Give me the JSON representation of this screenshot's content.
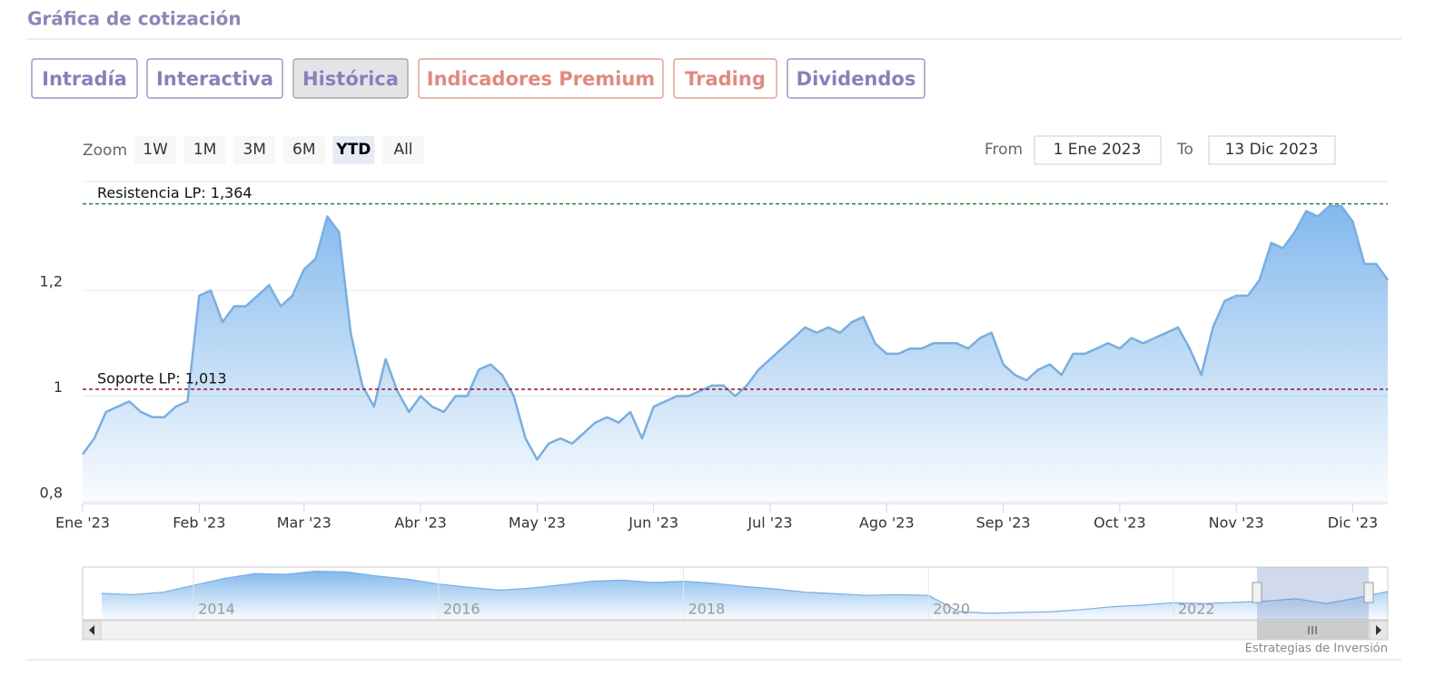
{
  "header": {
    "title": "Gráfica de cotización"
  },
  "tabs": [
    {
      "label": "Intradía",
      "color": "#8a80b8"
    },
    {
      "label": "Interactiva",
      "color": "#8a80b8"
    },
    {
      "label": "Histórica",
      "color": "#8a80b8",
      "selected": true
    },
    {
      "label": "Indicadores Premium",
      "color": "#e08a80"
    },
    {
      "label": "Trading",
      "color": "#e08a80"
    },
    {
      "label": "Dividendos",
      "color": "#8a80b8"
    }
  ],
  "zoom": {
    "label": "Zoom",
    "buttons": [
      "1W",
      "1M",
      "3M",
      "6M",
      "YTD",
      "All"
    ],
    "selected": "YTD"
  },
  "range": {
    "from_label": "From",
    "from": "1 Ene 2023",
    "to_label": "To",
    "to": "13 Dic 2023"
  },
  "credits": "Estrategias de Inversión",
  "chart_data": [
    {
      "type": "area",
      "color": "#7aaee0",
      "categories": [
        "Ene '23",
        null,
        null,
        null,
        null,
        null,
        null,
        null,
        null,
        null,
        "Feb '23",
        null,
        null,
        null,
        null,
        null,
        null,
        null,
        null,
        "Mar '23",
        null,
        null,
        null,
        null,
        null,
        null,
        null,
        null,
        null,
        "Abr '23",
        null,
        null,
        null,
        null,
        null,
        null,
        null,
        null,
        null,
        "May '23",
        null,
        null,
        null,
        null,
        null,
        null,
        null,
        null,
        null,
        "Jun '23",
        null,
        null,
        null,
        null,
        null,
        null,
        null,
        null,
        null,
        "Jul '23",
        null,
        null,
        null,
        null,
        null,
        null,
        null,
        null,
        null,
        "Ago '23",
        null,
        null,
        null,
        null,
        null,
        null,
        null,
        null,
        null,
        "Sep '23",
        null,
        null,
        null,
        null,
        null,
        null,
        null,
        null,
        null,
        "Oct '23",
        null,
        null,
        null,
        null,
        null,
        null,
        null,
        null,
        null,
        "Nov '23",
        null,
        null,
        null,
        null,
        null,
        null,
        null,
        null,
        null,
        "Dic '23",
        null,
        null,
        null
      ],
      "values": [
        0.89,
        0.92,
        0.97,
        0.98,
        0.99,
        0.97,
        0.96,
        0.96,
        0.98,
        0.99,
        1.19,
        1.2,
        1.14,
        1.17,
        1.17,
        1.19,
        1.21,
        1.17,
        1.19,
        1.24,
        1.26,
        1.34,
        1.31,
        1.12,
        1.02,
        0.98,
        1.07,
        1.01,
        0.97,
        1.0,
        0.98,
        0.97,
        1.0,
        1.0,
        1.05,
        1.06,
        1.04,
        1.0,
        0.92,
        0.88,
        0.91,
        0.92,
        0.91,
        0.93,
        0.95,
        0.96,
        0.95,
        0.97,
        0.92,
        0.98,
        0.99,
        1.0,
        1.0,
        1.01,
        1.02,
        1.02,
        1.0,
        1.02,
        1.05,
        1.07,
        1.09,
        1.11,
        1.13,
        1.12,
        1.13,
        1.12,
        1.14,
        1.15,
        1.1,
        1.08,
        1.08,
        1.09,
        1.09,
        1.1,
        1.1,
        1.1,
        1.09,
        1.11,
        1.12,
        1.06,
        1.04,
        1.03,
        1.05,
        1.06,
        1.04,
        1.08,
        1.08,
        1.09,
        1.1,
        1.09,
        1.11,
        1.1,
        1.11,
        1.12,
        1.13,
        1.09,
        1.04,
        1.13,
        1.18,
        1.19,
        1.19,
        1.22,
        1.29,
        1.28,
        1.31,
        1.35,
        1.34,
        1.36,
        1.36,
        1.33,
        1.25,
        1.25,
        1.22
      ],
      "ylim": [
        0.8,
        1.4
      ],
      "yticks": [
        {
          "value": 0.8,
          "label": "0,8"
        },
        1,
        {
          "value": 1.2,
          "label": "1,2"
        }
      ],
      "grid": true,
      "annotations": [
        {
          "text": "Resistencia LP: 1,364",
          "value": 1.364,
          "color": "#2e7d32"
        },
        {
          "text": "Soporte LP: 1,013",
          "value": 1.013,
          "color": "#8b1a1a"
        }
      ]
    },
    {
      "type": "area",
      "color": "#7aaee0",
      "categories": [
        null,
        null,
        null,
        "2014",
        null,
        null,
        null,
        null,
        null,
        null,
        null,
        "2016",
        null,
        null,
        null,
        null,
        null,
        null,
        null,
        "2018",
        null,
        null,
        null,
        null,
        null,
        null,
        null,
        "2020",
        null,
        null,
        null,
        null,
        null,
        null,
        null,
        "2022",
        null,
        null,
        null,
        null,
        null,
        null,
        null
      ],
      "values": [
        1.25,
        1.22,
        1.28,
        1.45,
        1.62,
        1.74,
        1.72,
        1.8,
        1.78,
        1.68,
        1.6,
        1.48,
        1.4,
        1.33,
        1.38,
        1.46,
        1.55,
        1.58,
        1.52,
        1.55,
        1.5,
        1.42,
        1.36,
        1.28,
        1.24,
        1.2,
        1.22,
        1.2,
        0.8,
        0.76,
        0.78,
        0.8,
        0.85,
        0.92,
        0.96,
        1.02,
        1.0,
        1.03,
        1.06,
        1.12,
        1.0,
        1.14,
        1.3
      ],
      "ylim": [
        0.6,
        1.9
      ]
    }
  ]
}
